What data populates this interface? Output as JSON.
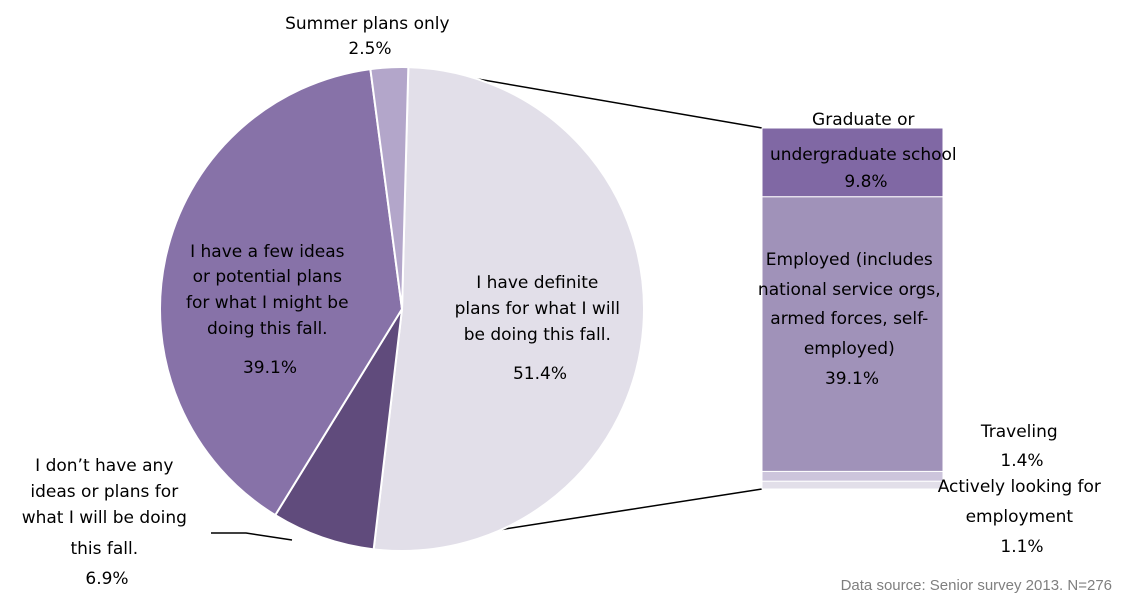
{
  "chart_data": [
    {
      "type": "pie",
      "slices": [
        {
          "label": "I have definite plans for what I will be doing this fall.",
          "value": 51.4,
          "value_label": "51.4%",
          "color": "#e2dfe9"
        },
        {
          "label": "I don’t have any ideas or plans for what I will be doing this fall.",
          "value": 6.9,
          "value_label": "6.9%",
          "color": "#604b7c"
        },
        {
          "label": "I have a few ideas or potential plans for what I might be doing this fall.",
          "value": 39.1,
          "value_label": "39.1%",
          "color": "#8772a8"
        },
        {
          "label": "Summer plans only",
          "value": 2.5,
          "value_label": "2.5%",
          "color": "#b3a6ca"
        }
      ],
      "exploded_slice": "I have definite plans for what I will be doing this fall."
    },
    {
      "type": "bar",
      "stacked": true,
      "segments": [
        {
          "label": "Graduate or undergraduate school",
          "value": 9.8,
          "value_label": "9.8%",
          "color": "#8068a4"
        },
        {
          "label": "Employed (includes national service orgs, armed forces, self-employed)",
          "value": 39.1,
          "value_label": "39.1%",
          "color": "#a092b9"
        },
        {
          "label": "Traveling",
          "value": 1.4,
          "value_label": "1.4%",
          "color": "#cdc5dc"
        },
        {
          "label": "Actively looking for employment",
          "value": 1.1,
          "value_label": "1.1%",
          "color": "#e2dfe9"
        }
      ]
    }
  ],
  "source_note": "Data source: Senior survey 2013. N=276"
}
